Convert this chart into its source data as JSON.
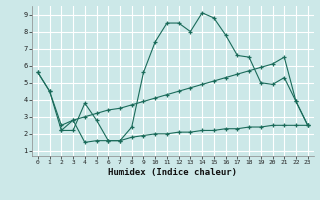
{
  "xlabel": "Humidex (Indice chaleur)",
  "background_color": "#cce8e8",
  "grid_color": "#ffffff",
  "line_color": "#1a6b5a",
  "xlim_min": -0.5,
  "xlim_max": 23.5,
  "ylim_min": 0.7,
  "ylim_max": 9.5,
  "xticks": [
    0,
    1,
    2,
    3,
    4,
    5,
    6,
    7,
    8,
    9,
    10,
    11,
    12,
    13,
    14,
    15,
    16,
    17,
    18,
    19,
    20,
    21,
    22,
    23
  ],
  "yticks": [
    1,
    2,
    3,
    4,
    5,
    6,
    7,
    8,
    9
  ],
  "series": [
    {
      "x": [
        0,
        1,
        2,
        3,
        4,
        5,
        6,
        7,
        8,
        9,
        10,
        11,
        12,
        13,
        14,
        15,
        16,
        17,
        18,
        19,
        20,
        21,
        22,
        23
      ],
      "y": [
        5.6,
        4.5,
        2.2,
        2.2,
        3.8,
        2.8,
        1.6,
        1.6,
        2.4,
        5.6,
        7.4,
        8.5,
        8.5,
        8.0,
        9.1,
        8.8,
        7.8,
        6.6,
        6.5,
        5.0,
        4.9,
        5.3,
        3.9,
        2.5
      ]
    },
    {
      "x": [
        0,
        1,
        2,
        3,
        4,
        5,
        6,
        7,
        8,
        9,
        10,
        11,
        12,
        13,
        14,
        15,
        16,
        17,
        18,
        19,
        20,
        21,
        22,
        23
      ],
      "y": [
        5.6,
        4.5,
        2.5,
        2.8,
        3.0,
        3.2,
        3.4,
        3.5,
        3.7,
        3.9,
        4.1,
        4.3,
        4.5,
        4.7,
        4.9,
        5.1,
        5.3,
        5.5,
        5.7,
        5.9,
        6.1,
        6.5,
        3.9,
        2.5
      ]
    },
    {
      "x": [
        2,
        3,
        4,
        5,
        6,
        7,
        8,
        9,
        10,
        11,
        12,
        13,
        14,
        15,
        16,
        17,
        18,
        19,
        20,
        21,
        22,
        23
      ],
      "y": [
        2.2,
        2.8,
        1.5,
        1.6,
        1.6,
        1.6,
        1.8,
        1.9,
        2.0,
        2.0,
        2.1,
        2.1,
        2.2,
        2.2,
        2.3,
        2.3,
        2.4,
        2.4,
        2.5,
        2.5,
        2.5,
        2.5
      ]
    }
  ]
}
